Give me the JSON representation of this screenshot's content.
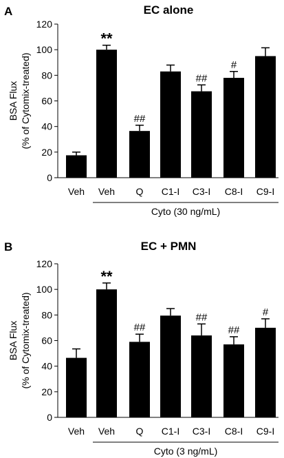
{
  "chart_data": [
    {
      "panel": "A",
      "type": "bar",
      "title": "EC alone",
      "ylabel_line1": "BSA Flux",
      "ylabel_line2": "(% of Cytomix-treated)",
      "ylim": [
        0,
        120
      ],
      "yticks": [
        0,
        20,
        40,
        60,
        80,
        100,
        120
      ],
      "categories": [
        "Veh",
        "Veh",
        "Q",
        "C1-I",
        "C3-I",
        "C8-I",
        "C9-I"
      ],
      "values": [
        17.5,
        100,
        36.5,
        83,
        67.5,
        78,
        95
      ],
      "errors": [
        2.5,
        3.5,
        4.5,
        5,
        5,
        5,
        6.5
      ],
      "annotations": [
        "",
        "**",
        "##",
        "",
        "##",
        "#",
        ""
      ],
      "group_label": "Cyto (30 ng/mL)",
      "bar_color": "#000000"
    },
    {
      "panel": "B",
      "type": "bar",
      "title": "EC + PMN",
      "ylabel_line1": "BSA Flux",
      "ylabel_line2": "(% of Cytomix-treated)",
      "ylim": [
        0,
        120
      ],
      "yticks": [
        0,
        20,
        40,
        60,
        80,
        100,
        120
      ],
      "categories": [
        "Veh",
        "Veh",
        "Q",
        "C1-I",
        "C3-I",
        "C8-I",
        "C9-I"
      ],
      "values": [
        46.5,
        100,
        59,
        79.5,
        64,
        57,
        70
      ],
      "errors": [
        7,
        5,
        6,
        5.5,
        9,
        6,
        7
      ],
      "annotations": [
        "",
        "**",
        "##",
        "",
        "##",
        "##",
        "#"
      ],
      "group_label": "Cyto (3 ng/mL)",
      "bar_color": "#000000"
    }
  ]
}
